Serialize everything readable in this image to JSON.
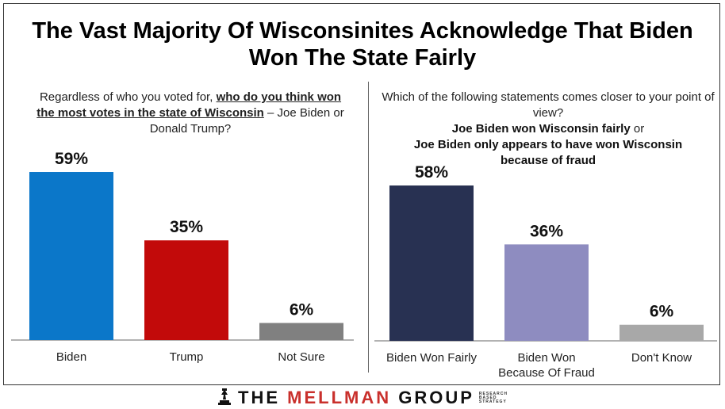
{
  "title": "The Vast Majority Of Wisconsinites Acknowledge That Biden Won The State Fairly",
  "left": {
    "question_plain_1": "Regardless of who you voted for, ",
    "question_emph": "who do you think won the most votes in the state of Wisconsin",
    "question_plain_2": " – Joe Biden or Donald Trump?"
  },
  "right": {
    "question_line": "Which of the following statements comes closer to your point of view?",
    "option_a": "Joe Biden won Wisconsin fairly",
    "connector": " or",
    "option_b": "Joe Biden only appears to have won Wisconsin because of fraud"
  },
  "footer": {
    "brand_part1": "THE ",
    "brand_part2": "MELLMAN",
    "brand_part3": " GROUP",
    "tagline": [
      "RESEARCH",
      "BASED",
      "STRATEGY"
    ],
    "icon": "chess-piece-icon"
  },
  "colors": {
    "biden": "#0b77c9",
    "trump": "#c20a0a",
    "not_sure": "#808080",
    "fairly": "#283152",
    "fraud": "#8e8cc0",
    "dont_know": "#a8a8a8"
  },
  "chart_data": [
    {
      "type": "bar",
      "categories": [
        "Biden",
        "Trump",
        "Not Sure"
      ],
      "values": [
        59,
        35,
        6
      ],
      "value_labels": [
        "59%",
        "35%",
        "6%"
      ],
      "ylim": [
        0,
        65
      ]
    },
    {
      "type": "bar",
      "categories": [
        "Biden Won Fairly",
        "Biden Won Because Of Fraud",
        "Don't Know"
      ],
      "category_lines": [
        [
          "Biden Won Fairly"
        ],
        [
          "Biden Won",
          "Because Of Fraud"
        ],
        [
          "Don't Know"
        ]
      ],
      "values": [
        58,
        36,
        6
      ],
      "value_labels": [
        "58%",
        "36%",
        "6%"
      ],
      "ylim": [
        0,
        65
      ]
    }
  ]
}
